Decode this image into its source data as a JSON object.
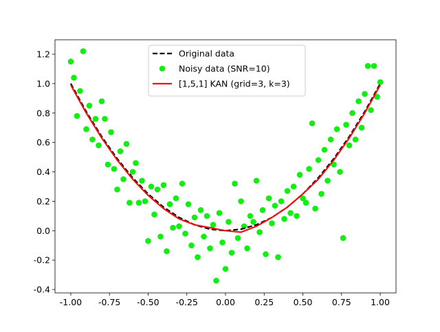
{
  "chart_data": {
    "type": "scatter",
    "xlim": [
      -1.102,
      1.102
    ],
    "ylim": [
      -0.423,
      1.298
    ],
    "xticks": [
      {
        "value": -1,
        "label": "-1.00"
      },
      -0.75,
      {
        "value": -0.5,
        "label": "-0.50"
      },
      -0.25,
      {
        "value": 0,
        "label": "0.00"
      },
      0.25,
      {
        "value": 0.5,
        "label": "0.50"
      },
      0.75,
      {
        "value": 1,
        "label": "1.00"
      }
    ],
    "yticks": [
      -0.4,
      -0.2,
      {
        "value": 0,
        "label": "0.0"
      },
      0.2,
      0.4,
      0.6,
      0.8,
      {
        "value": 1,
        "label": "1.0"
      },
      1.2
    ],
    "grid": false,
    "legend": "upper center",
    "series": [
      {
        "name": "Original data",
        "type": "line",
        "linestyle": "dashed",
        "color": "#000000",
        "x": [
          -1,
          -0.9,
          -0.8,
          -0.7,
          -0.6,
          -0.5,
          -0.4,
          -0.3,
          -0.2,
          -0.1,
          0,
          0.1,
          0.2,
          0.3,
          0.4,
          0.5,
          0.6,
          0.7,
          0.8,
          0.9,
          1
        ],
        "y": [
          1,
          0.81,
          0.64,
          0.49,
          0.36,
          0.25,
          0.16,
          0.09,
          0.04,
          0.01,
          0,
          0.01,
          0.04,
          0.09,
          0.16,
          0.25,
          0.36,
          0.49,
          0.64,
          0.81,
          1
        ]
      },
      {
        "name": "Noisy data (SNR=10)",
        "type": "scatter",
        "color": "#11ee11",
        "x": [
          -1,
          -0.98,
          -0.96,
          -0.94,
          -0.92,
          -0.9,
          -0.88,
          -0.86,
          -0.84,
          -0.82,
          -0.8,
          -0.78,
          -0.76,
          -0.74,
          -0.72,
          -0.7,
          -0.68,
          -0.66,
          -0.64,
          -0.62,
          -0.6,
          -0.58,
          -0.56,
          -0.54,
          -0.52,
          -0.5,
          -0.48,
          -0.46,
          -0.44,
          -0.42,
          -0.4,
          -0.38,
          -0.36,
          -0.34,
          -0.32,
          -0.3,
          -0.28,
          -0.26,
          -0.24,
          -0.22,
          -0.2,
          -0.18,
          -0.16,
          -0.14,
          -0.12,
          -0.1,
          -0.08,
          -0.06,
          -0.04,
          -0.02,
          0,
          0.02,
          0.04,
          0.06,
          0.08,
          0.1,
          0.12,
          0.14,
          0.16,
          0.18,
          0.2,
          0.22,
          0.24,
          0.26,
          0.28,
          0.3,
          0.32,
          0.34,
          0.36,
          0.38,
          0.4,
          0.42,
          0.44,
          0.46,
          0.48,
          0.5,
          0.52,
          0.54,
          0.56,
          0.58,
          0.6,
          0.62,
          0.64,
          0.66,
          0.68,
          0.7,
          0.72,
          0.74,
          0.76,
          0.78,
          0.8,
          0.82,
          0.84,
          0.86,
          0.88,
          0.9,
          0.92,
          0.94,
          0.96,
          0.98,
          1
        ],
        "y": [
          1.15,
          1.04,
          0.78,
          0.95,
          1.22,
          0.69,
          0.85,
          0.62,
          0.76,
          0.58,
          0.88,
          0.76,
          0.45,
          0.67,
          0.42,
          0.28,
          0.54,
          0.35,
          0.59,
          0.19,
          0.4,
          0.46,
          0.19,
          0.34,
          0.2,
          -0.07,
          0.3,
          0.11,
          0.28,
          -0.04,
          0.31,
          -0.14,
          0.18,
          0.02,
          0.22,
          0.03,
          0.32,
          -0.02,
          0.18,
          -0.1,
          0.09,
          -0.18,
          0.14,
          -0.04,
          0.1,
          -0.12,
          0.04,
          -0.34,
          0.12,
          -0.08,
          -0.26,
          0.06,
          -0.15,
          0.32,
          -0.05,
          0.2,
          0.03,
          -0.12,
          0.1,
          0.06,
          0.34,
          -0.01,
          0.14,
          -0.16,
          0.22,
          0.05,
          0.17,
          -0.18,
          0.2,
          0.08,
          0.27,
          0.12,
          0.3,
          0.1,
          0.38,
          0.22,
          0.19,
          0.42,
          0.73,
          0.15,
          0.48,
          0.25,
          0.55,
          0.34,
          0.62,
          0.45,
          0.69,
          0.4,
          -0.05,
          0.72,
          0.58,
          0.8,
          0.62,
          0.88,
          0.7,
          0.93,
          1.12,
          0.82,
          1.12,
          0.91,
          1.01
        ]
      },
      {
        "name": "[1,5,1] KAN (grid=3, k=3)",
        "type": "line",
        "linestyle": "solid",
        "color": "#ee1111",
        "x": [
          -1,
          -0.9,
          -0.8,
          -0.7,
          -0.6,
          -0.5,
          -0.4,
          -0.3,
          -0.2,
          -0.1,
          0,
          0.1,
          0.2,
          0.3,
          0.4,
          0.5,
          0.6,
          0.7,
          0.8,
          0.9,
          1
        ],
        "y": [
          0.99,
          0.8,
          0.63,
          0.48,
          0.35,
          0.24,
          0.15,
          0.08,
          0.04,
          0.02,
          0,
          -0.01,
          0.03,
          0.09,
          0.16,
          0.25,
          0.35,
          0.48,
          0.63,
          0.8,
          0.99
        ]
      }
    ]
  }
}
